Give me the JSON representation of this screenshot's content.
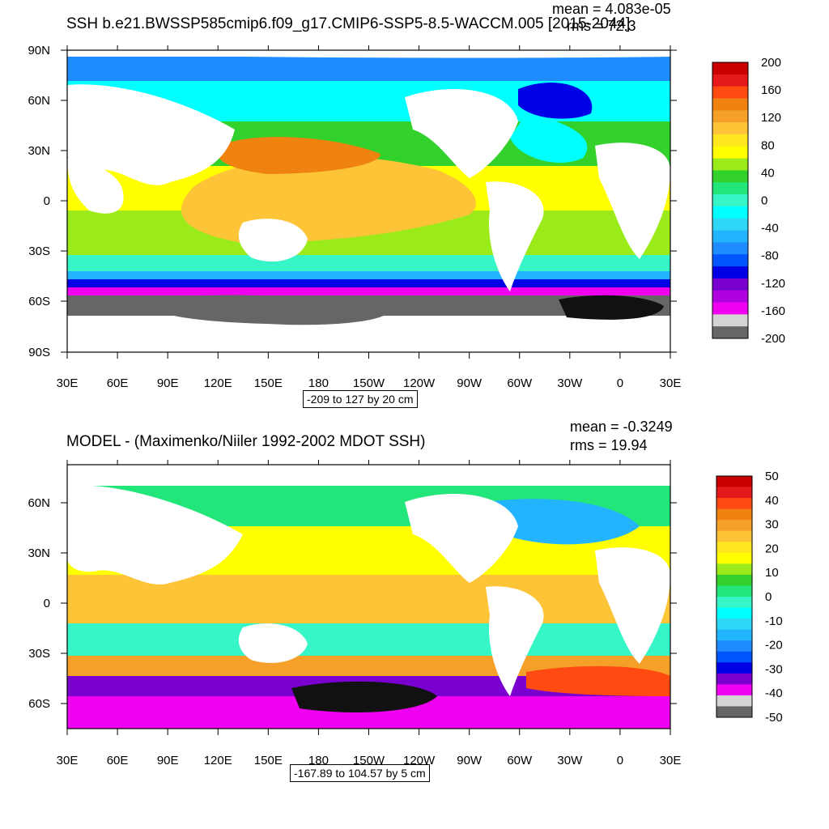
{
  "panels": [
    {
      "id": "top",
      "title": "SSH b.e21.BWSSP585cmip6.f09_g17.CMIP6-SSP5-8.5-WACCM.005 [2015-2044]",
      "mean_text": "mean = 4.083e-05",
      "rms_text": "rms = 72.3",
      "range_text": "-209 to 127 by 20 cm",
      "lat_labels": [
        "90N",
        "60N",
        "30N",
        "0",
        "30S",
        "60S",
        "90S"
      ],
      "lon_labels": [
        "30E",
        "60E",
        "90E",
        "120E",
        "150E",
        "180",
        "150W",
        "120W",
        "90W",
        "60W",
        "30W",
        "0",
        "30E"
      ],
      "colorbar_labels": [
        "200",
        "160",
        "120",
        "80",
        "40",
        "0",
        "-40",
        "-80",
        "-120",
        "-160",
        "-200"
      ],
      "colorbar_colors": [
        "#c80000",
        "#e51919",
        "#ff4b12",
        "#f0820f",
        "#f5a029",
        "#fcc436",
        "#ffe61e",
        "#ffff00",
        "#9bea1a",
        "#33d12b",
        "#23e67a",
        "#36f5c7",
        "#00ffff",
        "#2ed7f5",
        "#22b4ff",
        "#1e8cff",
        "#0055ff",
        "#0000e6",
        "#7a00cf",
        "#b000e0",
        "#f000f0",
        "#d4d4d4",
        "#666666"
      ]
    },
    {
      "id": "bottom",
      "title": "MODEL - (Maximenko/Niiler 1992-2002 MDOT SSH)",
      "mean_text": "mean = -0.3249",
      "rms_text": "rms = 19.94",
      "range_text": "-167.89 to 104.57 by 5 cm",
      "lat_labels": [
        "60N",
        "30N",
        "0",
        "30S",
        "60S"
      ],
      "lon_labels": [
        "30E",
        "60E",
        "90E",
        "120E",
        "150E",
        "180",
        "150W",
        "120W",
        "90W",
        "60W",
        "30W",
        "0",
        "30E"
      ],
      "colorbar_labels": [
        "50",
        "40",
        "30",
        "20",
        "10",
        "0",
        "-10",
        "-20",
        "-30",
        "-40",
        "-50"
      ],
      "colorbar_colors": [
        "#c80000",
        "#e51919",
        "#ff4b12",
        "#f0820f",
        "#f5a029",
        "#fcc436",
        "#ffe61e",
        "#ffff00",
        "#9bea1a",
        "#33d12b",
        "#23e67a",
        "#36f5c7",
        "#00ffff",
        "#2ed7f5",
        "#22b4ff",
        "#1e8cff",
        "#0055ff",
        "#0000e6",
        "#7a00cf",
        "#f000f0",
        "#d4d4d4",
        "#666666"
      ]
    }
  ]
}
